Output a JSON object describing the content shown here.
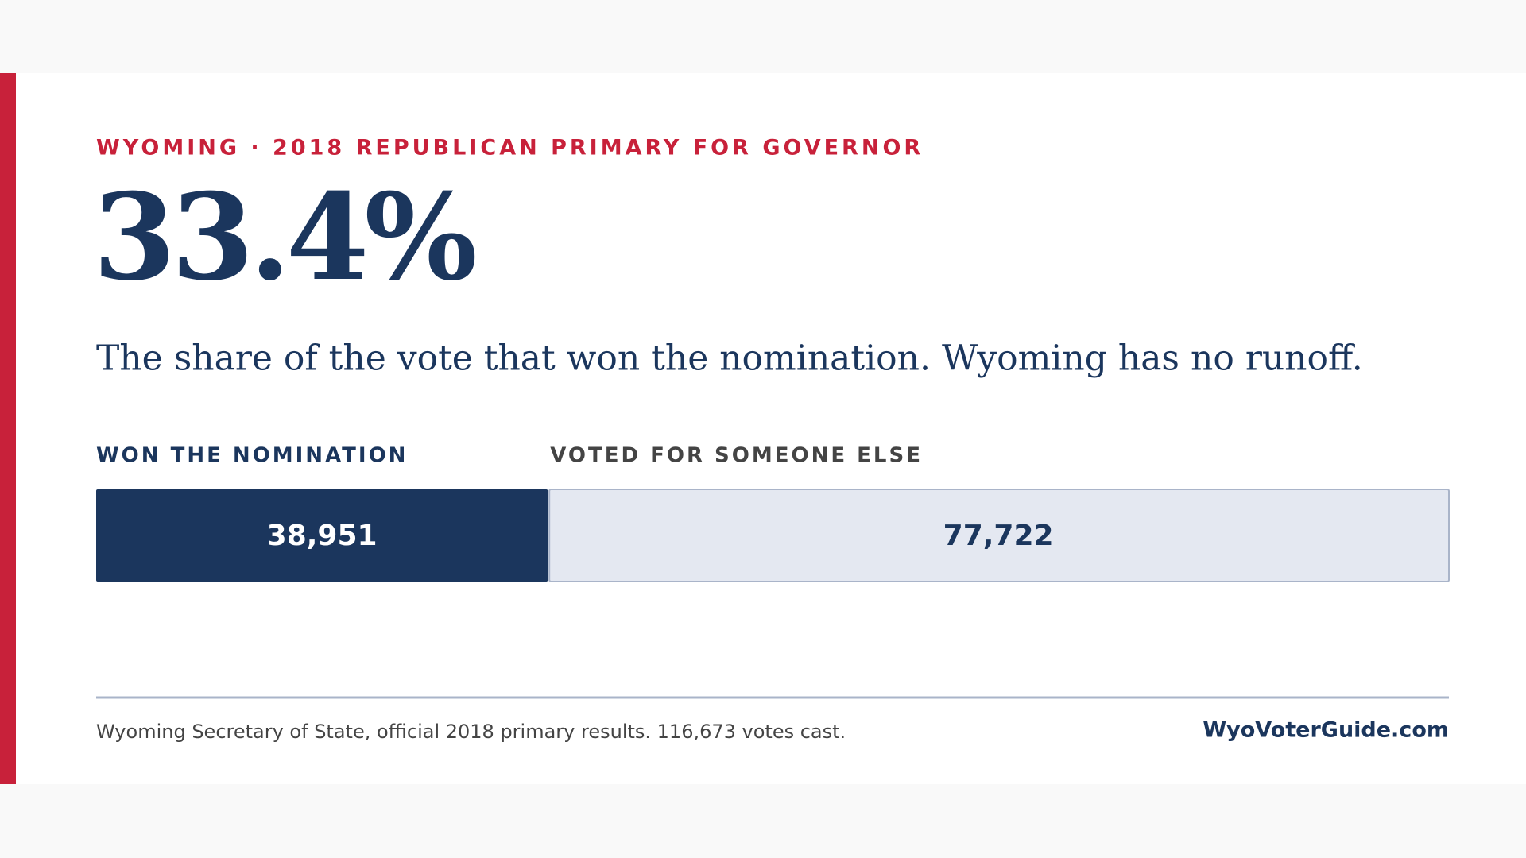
{
  "chart_data": {
    "type": "stacked_bar",
    "kicker": "WYOMING · 2018 REPUBLICAN PRIMARY FOR GOVERNOR",
    "headline": {
      "value": 33.4,
      "label": "33.4%"
    },
    "subtitle": "The share of the vote that won the nomination. Wyoming has no runoff.",
    "xlim": [
      0,
      116673
    ],
    "series": [
      {
        "name": "WON THE NOMINATION",
        "color": "#1b365d",
        "values": [
          38951
        ],
        "value_labels": [
          "38,951"
        ]
      },
      {
        "name": "VOTED FOR SOMEONE ELSE",
        "color": "#e4e8f1",
        "values": [
          77722
        ],
        "value_labels": [
          "77,722"
        ]
      }
    ],
    "source": "Wyoming Secretary of State, official 2018 primary results. 116,673 votes cast.",
    "credit": "WyoVoterGuide.com"
  }
}
